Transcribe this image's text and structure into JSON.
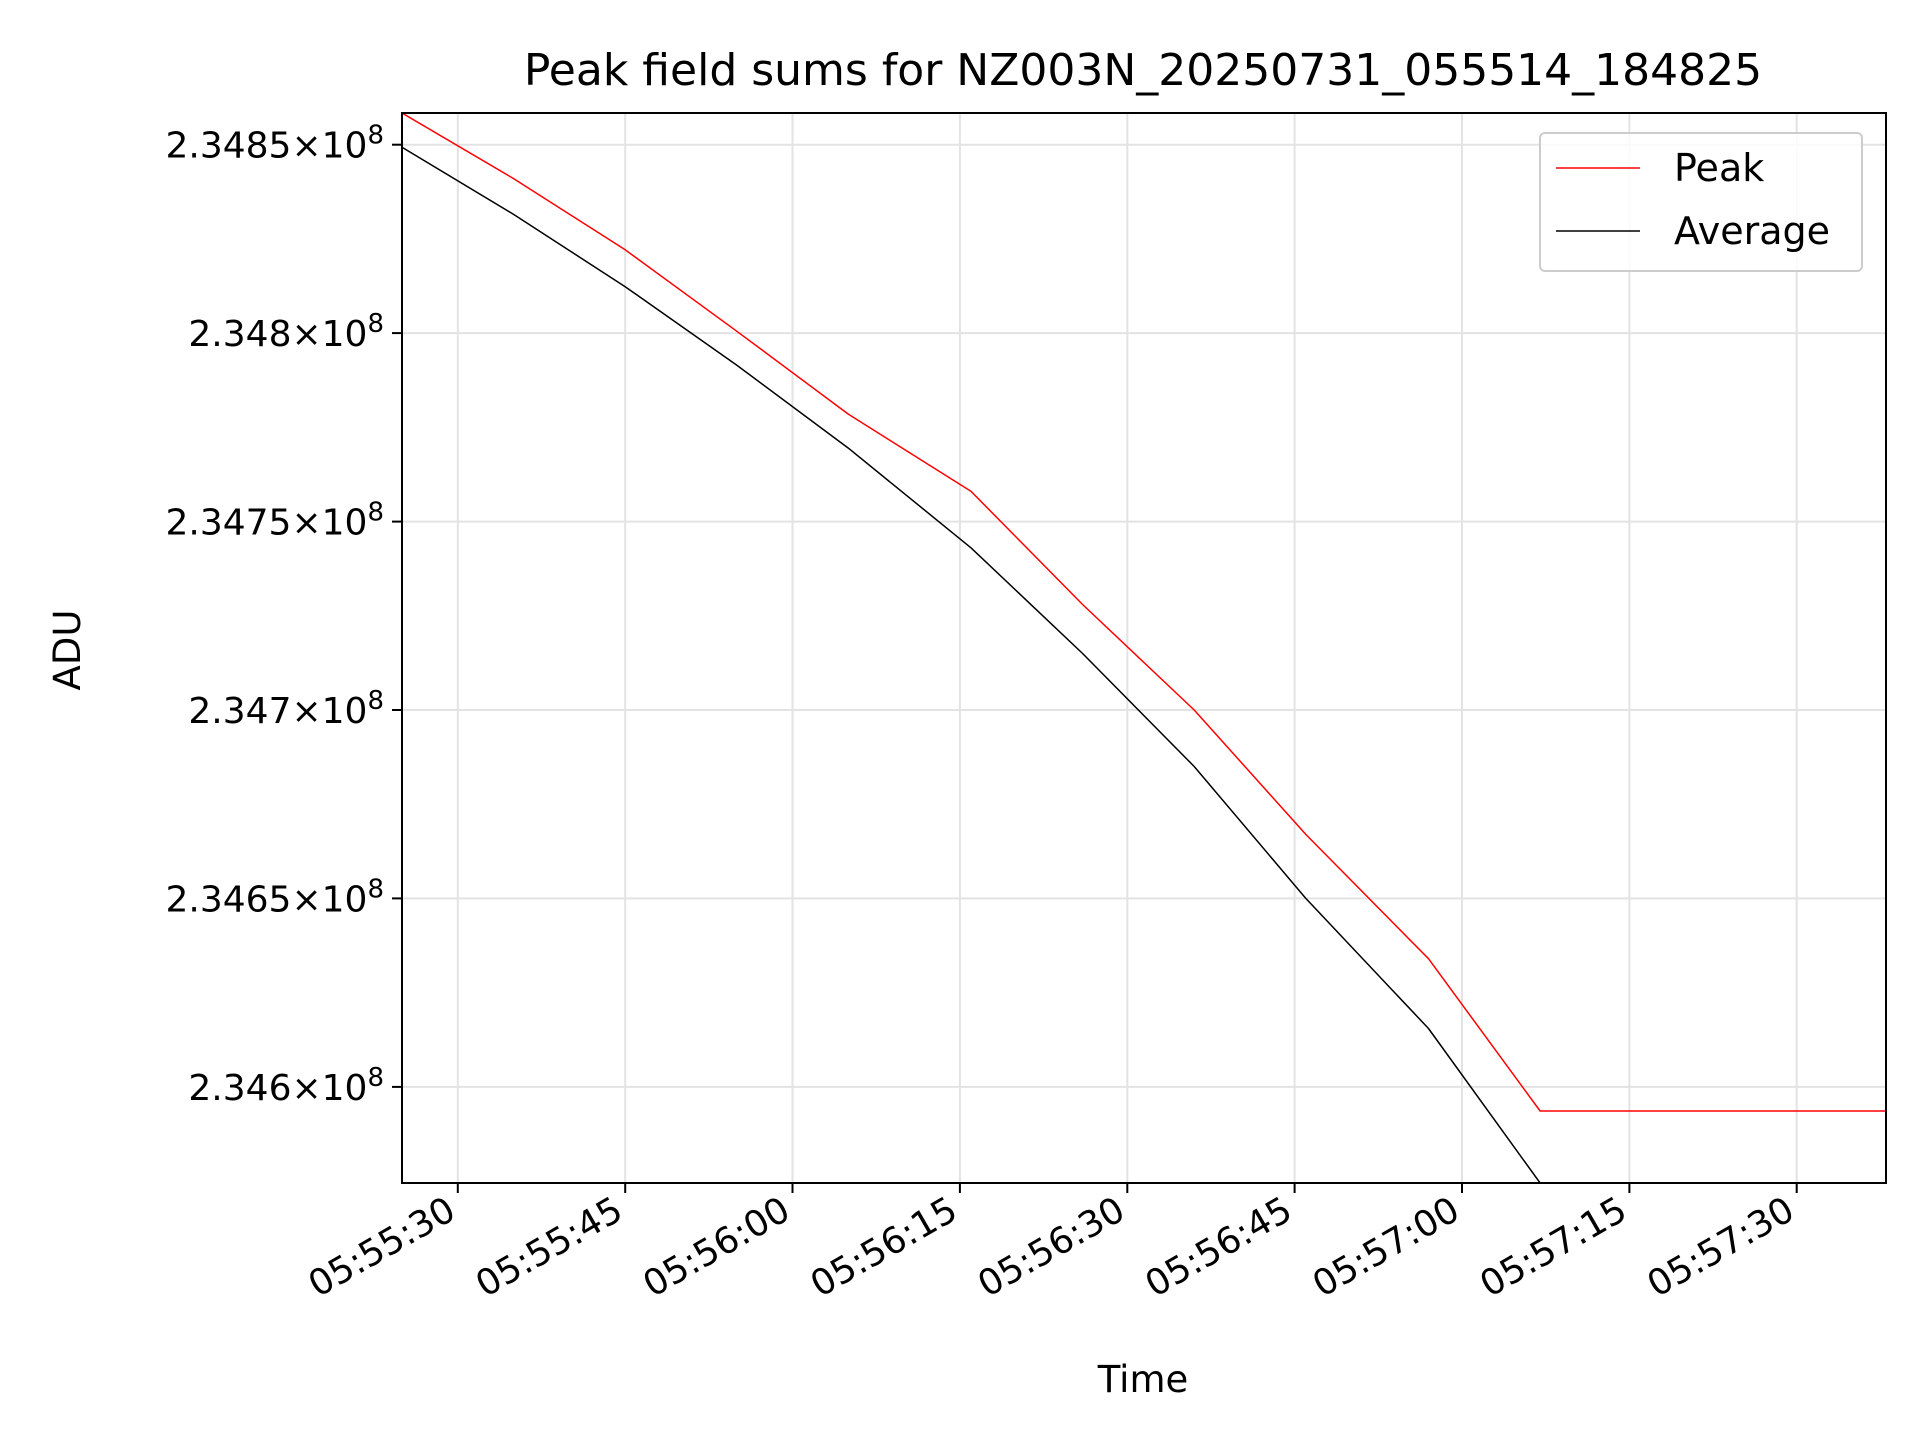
{
  "chart_data": {
    "type": "line",
    "title": "Peak field sums for NZ003N_20250731_055514_184825",
    "xlabel": "Time",
    "ylabel": "ADU",
    "x_tick_labels": [
      "05:55:30",
      "05:55:45",
      "05:56:00",
      "05:56:15",
      "05:56:30",
      "05:56:45",
      "05:57:00",
      "05:57:15",
      "05:57:30"
    ],
    "y_ticks": [
      {
        "mantissa": "2.3485",
        "exponent": "8",
        "value": 234850000
      },
      {
        "mantissa": "2.348",
        "exponent": "8",
        "value": 234800000
      },
      {
        "mantissa": "2.3475",
        "exponent": "8",
        "value": 234750000
      },
      {
        "mantissa": "2.347",
        "exponent": "8",
        "value": 234700000
      },
      {
        "mantissa": "2.3465",
        "exponent": "8",
        "value": 234650000
      },
      {
        "mantissa": "2.346",
        "exponent": "8",
        "value": 234600000
      }
    ],
    "xlim": [
      "05:55:25",
      "05:57:38"
    ],
    "ylim": [
      234574500,
      234858400
    ],
    "grid": true,
    "legend_position": "top-right",
    "series": [
      {
        "name": "Peak",
        "color": "#ff0000",
        "points": [
          [
            "05:55:25",
            234858400
          ],
          [
            "05:55:35",
            234841000
          ],
          [
            "05:55:45",
            234822100
          ],
          [
            "05:55:55",
            234800500
          ],
          [
            "05:56:05",
            234778500
          ],
          [
            "05:56:16",
            234758000
          ],
          [
            "05:56:26",
            234728000
          ],
          [
            "05:56:36",
            234700000
          ],
          [
            "05:56:46",
            234667000
          ],
          [
            "05:56:57",
            234634000
          ],
          [
            "05:57:07",
            234593600
          ],
          [
            "05:57:17",
            234593600
          ],
          [
            "05:57:27",
            234593600
          ],
          [
            "05:57:38",
            234593600
          ]
        ]
      },
      {
        "name": "Average",
        "color": "#000000",
        "points": [
          [
            "05:55:25",
            234849300
          ],
          [
            "05:55:35",
            234831500
          ],
          [
            "05:55:45",
            234812300
          ],
          [
            "05:55:55",
            234791500
          ],
          [
            "05:56:05",
            234769500
          ],
          [
            "05:56:16",
            234743000
          ],
          [
            "05:56:26",
            234715000
          ],
          [
            "05:56:36",
            234685000
          ],
          [
            "05:56:46",
            234650000
          ],
          [
            "05:56:57",
            234615500
          ],
          [
            "05:57:07",
            234574500
          ]
        ]
      }
    ]
  }
}
